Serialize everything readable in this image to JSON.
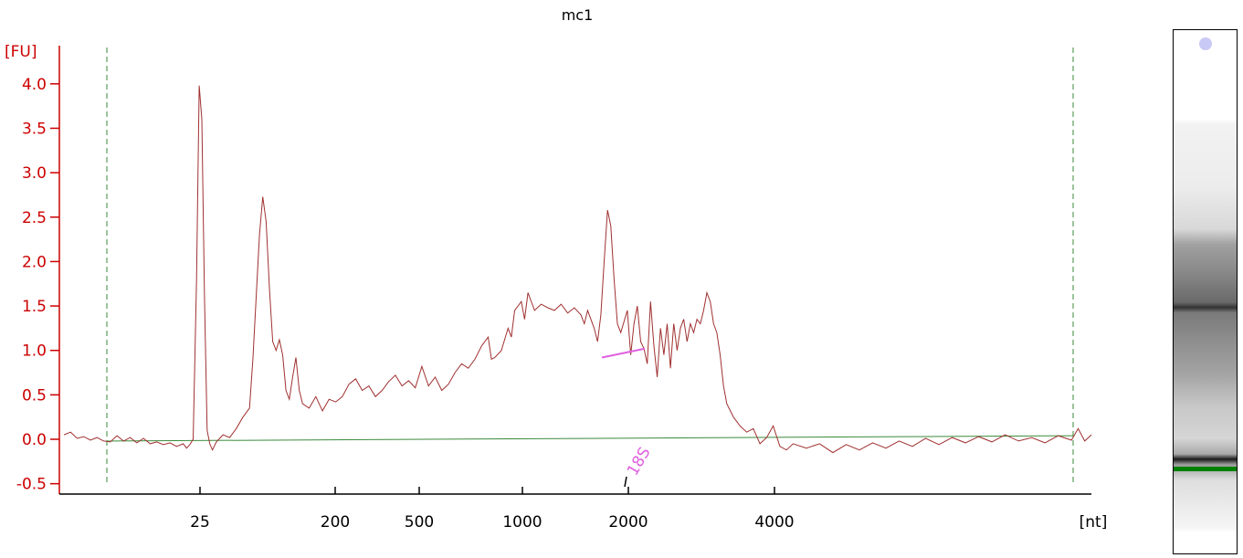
{
  "chart_data": {
    "type": "line",
    "title": "mc1",
    "ylabel": "[FU]",
    "xlabel": "[nt]",
    "ylim": [
      -0.5,
      4.0
    ],
    "yticks": [
      "-0.5",
      "0.0",
      "0.5",
      "1.0",
      "1.5",
      "2.0",
      "2.5",
      "3.0",
      "3.5",
      "4.0"
    ],
    "xticks": [
      "25",
      "200",
      "500",
      "1000",
      "2000",
      "4000"
    ],
    "marker": {
      "label": "18S",
      "x": "1850"
    },
    "colors": {
      "axis": "#cc0000",
      "trace": "#a03030",
      "baseline": "#3a8a3a",
      "guides": "#3a8a3a",
      "marker": "#e060e0",
      "lane_marker": "#008000"
    },
    "series": [
      {
        "values": [
          [
            0.0,
            0.05
          ],
          [
            0.01,
            0.08
          ],
          [
            0.02,
            0.01
          ],
          [
            0.03,
            0.03
          ],
          [
            0.04,
            -0.01
          ],
          [
            0.05,
            0.02
          ],
          [
            0.06,
            -0.02
          ],
          [
            0.07,
            -0.03
          ],
          [
            0.08,
            0.04
          ],
          [
            0.09,
            -0.02
          ],
          [
            0.1,
            0.02
          ],
          [
            0.11,
            -0.04
          ],
          [
            0.12,
            0.01
          ],
          [
            0.13,
            -0.05
          ],
          [
            0.14,
            -0.03
          ],
          [
            0.15,
            -0.06
          ],
          [
            0.16,
            -0.04
          ],
          [
            0.17,
            -0.08
          ],
          [
            0.18,
            -0.05
          ],
          [
            0.185,
            -0.1
          ],
          [
            0.19,
            -0.06
          ],
          [
            0.195,
            0.0
          ],
          [
            0.2,
            1.8
          ],
          [
            0.204,
            3.98
          ],
          [
            0.208,
            3.6
          ],
          [
            0.212,
            1.6
          ],
          [
            0.216,
            0.1
          ],
          [
            0.22,
            -0.05
          ],
          [
            0.224,
            -0.12
          ],
          [
            0.23,
            -0.03
          ],
          [
            0.24,
            0.05
          ],
          [
            0.25,
            0.02
          ],
          [
            0.26,
            0.12
          ],
          [
            0.27,
            0.25
          ],
          [
            0.28,
            0.35
          ],
          [
            0.285,
            0.9
          ],
          [
            0.29,
            1.6
          ],
          [
            0.295,
            2.3
          ],
          [
            0.3,
            2.73
          ],
          [
            0.305,
            2.45
          ],
          [
            0.31,
            1.7
          ],
          [
            0.315,
            1.1
          ],
          [
            0.32,
            1.0
          ],
          [
            0.325,
            1.12
          ],
          [
            0.33,
            0.95
          ],
          [
            0.335,
            0.55
          ],
          [
            0.34,
            0.45
          ],
          [
            0.345,
            0.7
          ],
          [
            0.35,
            0.92
          ],
          [
            0.355,
            0.55
          ],
          [
            0.36,
            0.4
          ],
          [
            0.37,
            0.35
          ],
          [
            0.38,
            0.48
          ],
          [
            0.39,
            0.32
          ],
          [
            0.4,
            0.45
          ],
          [
            0.41,
            0.42
          ],
          [
            0.42,
            0.48
          ],
          [
            0.43,
            0.62
          ],
          [
            0.44,
            0.68
          ],
          [
            0.45,
            0.55
          ],
          [
            0.46,
            0.6
          ],
          [
            0.47,
            0.48
          ],
          [
            0.48,
            0.55
          ],
          [
            0.49,
            0.65
          ],
          [
            0.5,
            0.72
          ],
          [
            0.51,
            0.6
          ],
          [
            0.52,
            0.66
          ],
          [
            0.53,
            0.58
          ],
          [
            0.54,
            0.82
          ],
          [
            0.55,
            0.6
          ],
          [
            0.56,
            0.7
          ],
          [
            0.57,
            0.55
          ],
          [
            0.58,
            0.62
          ],
          [
            0.59,
            0.75
          ],
          [
            0.6,
            0.85
          ],
          [
            0.61,
            0.8
          ],
          [
            0.62,
            0.9
          ],
          [
            0.63,
            1.05
          ],
          [
            0.64,
            1.15
          ],
          [
            0.645,
            0.9
          ],
          [
            0.65,
            0.92
          ],
          [
            0.66,
            1.0
          ],
          [
            0.67,
            1.25
          ],
          [
            0.675,
            1.15
          ],
          [
            0.68,
            1.45
          ],
          [
            0.69,
            1.55
          ],
          [
            0.695,
            1.35
          ],
          [
            0.7,
            1.65
          ],
          [
            0.71,
            1.45
          ],
          [
            0.72,
            1.52
          ],
          [
            0.73,
            1.48
          ],
          [
            0.74,
            1.45
          ],
          [
            0.75,
            1.52
          ],
          [
            0.76,
            1.42
          ],
          [
            0.77,
            1.48
          ],
          [
            0.78,
            1.4
          ],
          [
            0.785,
            1.3
          ],
          [
            0.79,
            1.45
          ],
          [
            0.8,
            1.25
          ],
          [
            0.805,
            1.1
          ],
          [
            0.81,
            1.4
          ],
          [
            0.815,
            2.0
          ],
          [
            0.82,
            2.58
          ],
          [
            0.825,
            2.4
          ],
          [
            0.83,
            1.8
          ],
          [
            0.835,
            1.3
          ],
          [
            0.84,
            1.2
          ],
          [
            0.85,
            1.45
          ],
          [
            0.855,
            0.95
          ],
          [
            0.86,
            1.3
          ],
          [
            0.865,
            1.5
          ],
          [
            0.87,
            1.1
          ],
          [
            0.875,
            1.02
          ],
          [
            0.88,
            0.85
          ],
          [
            0.885,
            1.55
          ],
          [
            0.89,
            1.05
          ],
          [
            0.895,
            0.7
          ],
          [
            0.9,
            1.25
          ],
          [
            0.905,
            0.95
          ],
          [
            0.91,
            1.3
          ],
          [
            0.915,
            0.8
          ],
          [
            0.92,
            1.3
          ],
          [
            0.925,
            1.0
          ],
          [
            0.93,
            1.25
          ],
          [
            0.935,
            1.35
          ],
          [
            0.94,
            1.1
          ],
          [
            0.945,
            1.3
          ],
          [
            0.95,
            1.2
          ],
          [
            0.955,
            1.35
          ],
          [
            0.96,
            1.3
          ],
          [
            0.965,
            1.45
          ],
          [
            0.97,
            1.65
          ],
          [
            0.975,
            1.55
          ],
          [
            0.98,
            1.3
          ],
          [
            0.985,
            1.2
          ],
          [
            0.99,
            0.95
          ],
          [
            0.995,
            0.6
          ],
          [
            1.0,
            0.4
          ],
          [
            1.01,
            0.25
          ],
          [
            1.02,
            0.15
          ],
          [
            1.03,
            0.08
          ],
          [
            1.04,
            0.12
          ],
          [
            1.05,
            -0.05
          ],
          [
            1.06,
            0.02
          ],
          [
            1.07,
            0.15
          ],
          [
            1.08,
            -0.08
          ],
          [
            1.09,
            -0.12
          ],
          [
            1.1,
            -0.05
          ],
          [
            1.12,
            -0.1
          ],
          [
            1.14,
            -0.05
          ],
          [
            1.16,
            -0.15
          ],
          [
            1.18,
            -0.06
          ],
          [
            1.2,
            -0.12
          ],
          [
            1.22,
            -0.04
          ],
          [
            1.24,
            -0.1
          ],
          [
            1.26,
            -0.02
          ],
          [
            1.28,
            -0.08
          ],
          [
            1.3,
            0.01
          ],
          [
            1.32,
            -0.06
          ],
          [
            1.34,
            0.02
          ],
          [
            1.36,
            -0.04
          ],
          [
            1.38,
            0.03
          ],
          [
            1.4,
            -0.03
          ],
          [
            1.42,
            0.05
          ],
          [
            1.44,
            -0.02
          ],
          [
            1.46,
            0.02
          ],
          [
            1.48,
            -0.04
          ],
          [
            1.5,
            0.04
          ],
          [
            1.52,
            -0.01
          ],
          [
            1.53,
            0.12
          ],
          [
            1.54,
            -0.02
          ],
          [
            1.55,
            0.05
          ]
        ]
      }
    ]
  }
}
